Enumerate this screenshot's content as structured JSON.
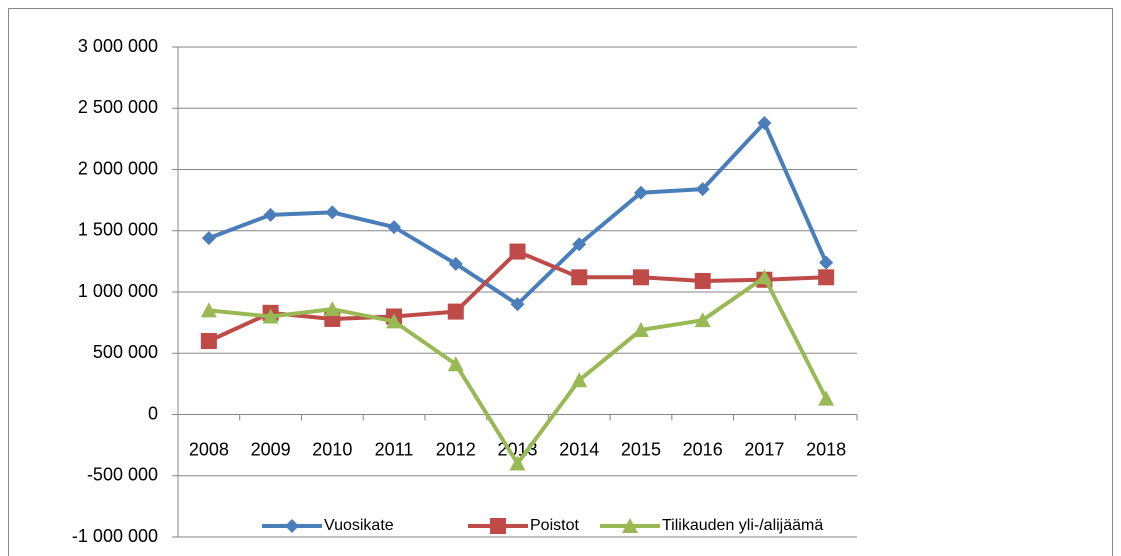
{
  "chart_data": {
    "type": "line",
    "categories": [
      "2008",
      "2009",
      "2010",
      "2011",
      "2012",
      "2013",
      "2014",
      "2015",
      "2016",
      "2017",
      "2018"
    ],
    "series": [
      {
        "name": "Vuosikate",
        "color": "#4a7ebb",
        "marker": "diamond",
        "values": [
          1440000,
          1630000,
          1650000,
          1530000,
          1230000,
          900000,
          1390000,
          1810000,
          1840000,
          2380000,
          1240000
        ]
      },
      {
        "name": "Poistot",
        "color": "#be4b48",
        "marker": "square",
        "values": [
          600000,
          830000,
          780000,
          800000,
          840000,
          1330000,
          1120000,
          1120000,
          1090000,
          1100000,
          1120000
        ]
      },
      {
        "name": "Tilikauden yli-/alijäämä",
        "color": "#98b954",
        "marker": "triangle",
        "values": [
          850000,
          800000,
          860000,
          760000,
          410000,
          -400000,
          280000,
          690000,
          770000,
          1120000,
          130000
        ]
      }
    ],
    "ylim": [
      -1000000,
      3000000
    ],
    "yticks": [
      {
        "value": -1000000,
        "label": "-1 000 000"
      },
      {
        "value": -500000,
        "label": "-500 000"
      },
      0,
      {
        "value": 500000,
        "label": "500 000"
      },
      {
        "value": 1000000,
        "label": "1 000 000"
      },
      {
        "value": 1500000,
        "label": "1 500 000"
      },
      {
        "value": 2000000,
        "label": "2 000 000"
      },
      {
        "value": 2500000,
        "label": "2 500 000"
      },
      {
        "value": 3000000,
        "label": "3 000 000"
      }
    ],
    "grid": true,
    "legend": "bottom"
  }
}
